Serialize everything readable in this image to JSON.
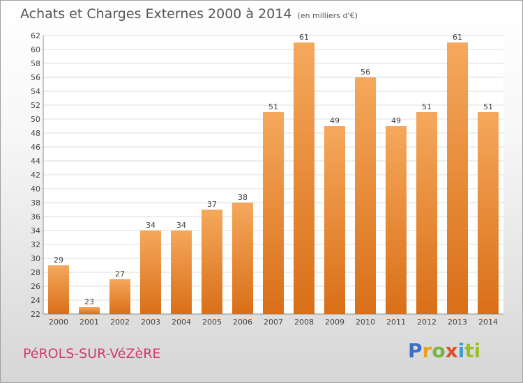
{
  "header": {
    "title": "Achats et Charges Externes 2000 à 2014",
    "subtitle": "(en milliers d'€)"
  },
  "footer": {
    "commune": "PéROLS-SUR-VéZèRE",
    "logo_parts": [
      "P",
      "r",
      "o",
      "x",
      "i",
      "ti"
    ]
  },
  "colors": {
    "bar_light": "#f5a85c",
    "bar_dark": "#d96f18",
    "commune_text": "#cc3f6b",
    "grid": "#dddddd"
  },
  "chart_data": {
    "type": "bar",
    "title": "Achats et Charges Externes 2000 à 2014",
    "subtitle": "(en milliers d'€)",
    "categories": [
      "2000",
      "2001",
      "2002",
      "2003",
      "2004",
      "2005",
      "2006",
      "2007",
      "2008",
      "2009",
      "2010",
      "2011",
      "2012",
      "2013",
      "2014"
    ],
    "values": [
      29,
      23,
      27,
      34,
      34,
      37,
      38,
      51,
      61,
      49,
      56,
      49,
      51,
      61,
      51
    ],
    "ylim": [
      22,
      62
    ],
    "yticks": [
      22,
      24,
      26,
      28,
      30,
      32,
      34,
      36,
      38,
      40,
      42,
      44,
      46,
      48,
      50,
      52,
      54,
      56,
      58,
      60,
      62
    ],
    "grid": true,
    "data_labels": true
  }
}
